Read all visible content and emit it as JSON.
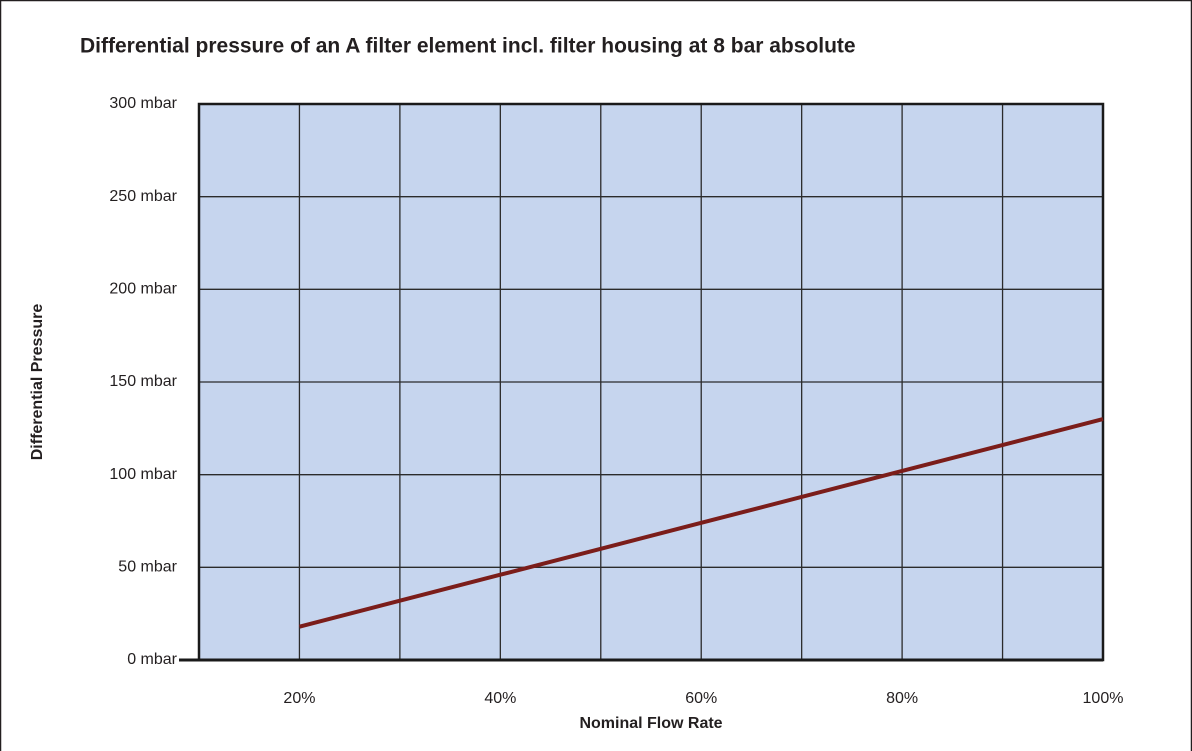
{
  "chart_data": {
    "type": "line",
    "title": "Differential pressure of an A filter element incl. filter housing at 8 bar absolute",
    "x_label": "Nominal Flow Rate",
    "y_label": "Differential Pressure",
    "x": [
      20,
      40,
      60,
      80,
      100
    ],
    "series": [
      {
        "color": "#7b1d1a",
        "values": [
          18,
          46,
          74,
          102,
          130
        ]
      }
    ],
    "xlim": [
      10,
      100
    ],
    "xticks": [
      {
        "value": 20,
        "label": "20%"
      },
      {
        "value": 40,
        "label": "40%"
      },
      {
        "value": 60,
        "label": "60%"
      },
      {
        "value": 80,
        "label": "80%"
      },
      {
        "value": 100,
        "label": "100%"
      }
    ],
    "xgrid": [
      10,
      20,
      30,
      40,
      50,
      60,
      70,
      80,
      90,
      100
    ],
    "ylim": [
      0,
      300
    ],
    "yticks": [
      {
        "value": 0,
        "label": "0 mbar"
      },
      {
        "value": 50,
        "label": "50 mbar"
      },
      {
        "value": 100,
        "label": "100 mbar"
      },
      {
        "value": 150,
        "label": "150 mbar"
      },
      {
        "value": 200,
        "label": "200 mbar"
      },
      {
        "value": 250,
        "label": "250 mbar"
      },
      {
        "value": 300,
        "label": "300 mbar"
      }
    ],
    "grid": true,
    "plot_background": "#c6d5ee"
  }
}
